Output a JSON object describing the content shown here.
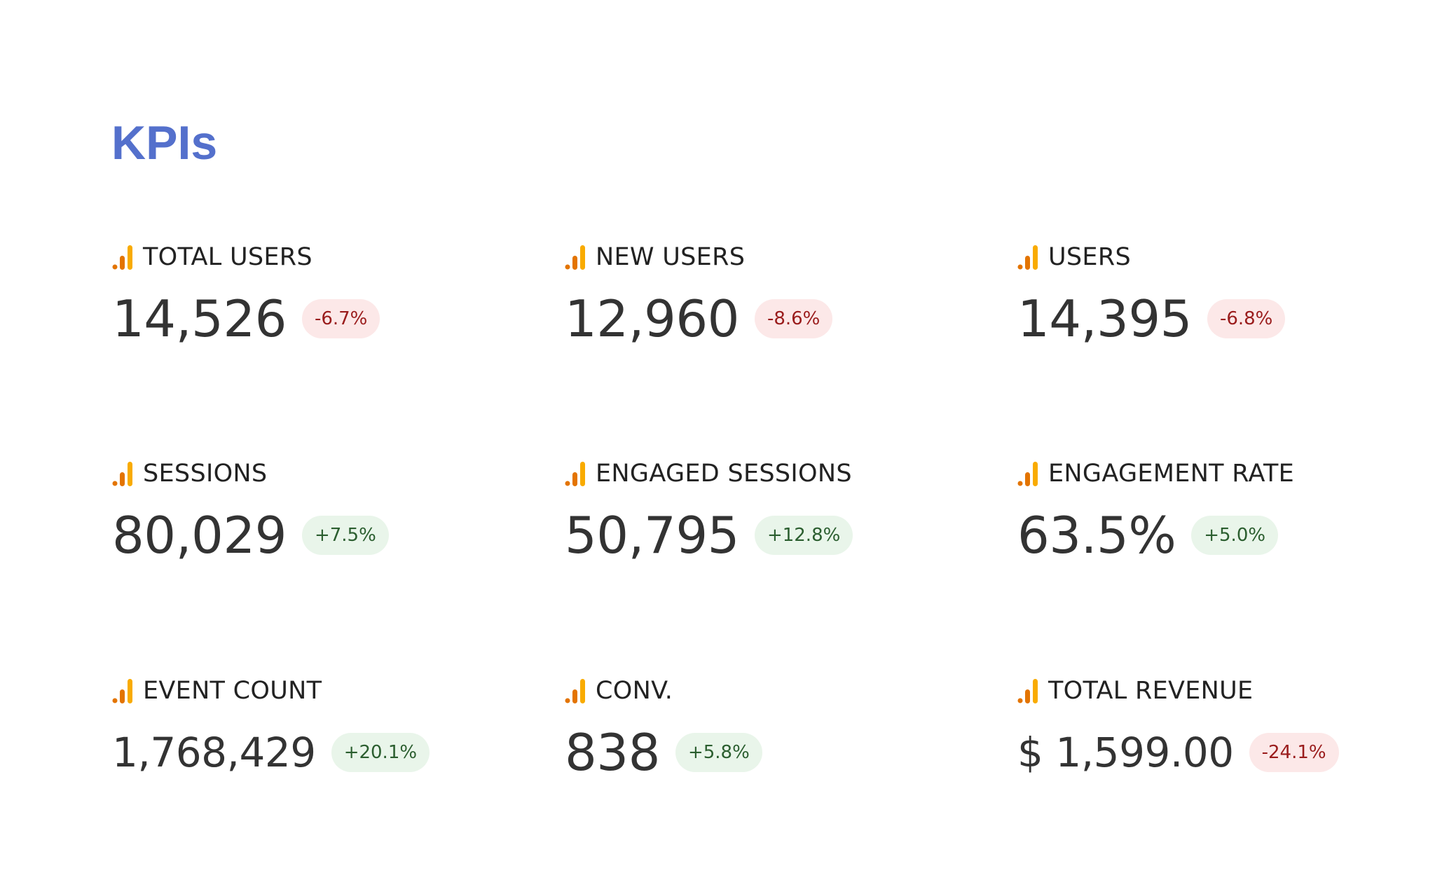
{
  "title": "KPIs",
  "colors": {
    "title": "#5470cc",
    "icon_bar_dark": "#e37400",
    "icon_bar_light": "#f9ab00",
    "badge_down_bg": "#fce8e8",
    "badge_down_text": "#9a1c1c",
    "badge_up_bg": "#e9f5ea",
    "badge_up_text": "#2b5e2f"
  },
  "icon": "analytics-bars-icon",
  "kpis": [
    {
      "label": "TOTAL USERS",
      "value": "14,526",
      "change": "-6.7%",
      "trend": "down"
    },
    {
      "label": "NEW USERS",
      "value": "12,960",
      "change": "-8.6%",
      "trend": "down"
    },
    {
      "label": "USERS",
      "value": "14,395",
      "change": "-6.8%",
      "trend": "down"
    },
    {
      "label": "SESSIONS",
      "value": "80,029",
      "change": "+7.5%",
      "trend": "up"
    },
    {
      "label": "ENGAGED SESSIONS",
      "value": "50,795",
      "change": "+12.8%",
      "trend": "up"
    },
    {
      "label": "ENGAGEMENT RATE",
      "value": "63.5%",
      "change": "+5.0%",
      "trend": "up"
    },
    {
      "label": "EVENT COUNT",
      "value": "1,768,429",
      "change": "+20.1%",
      "trend": "up"
    },
    {
      "label": "CONV.",
      "value": "838",
      "change": "+5.8%",
      "trend": "up"
    },
    {
      "label": "TOTAL REVENUE",
      "value": "$ 1,599.00",
      "change": "-24.1%",
      "trend": "down"
    }
  ]
}
